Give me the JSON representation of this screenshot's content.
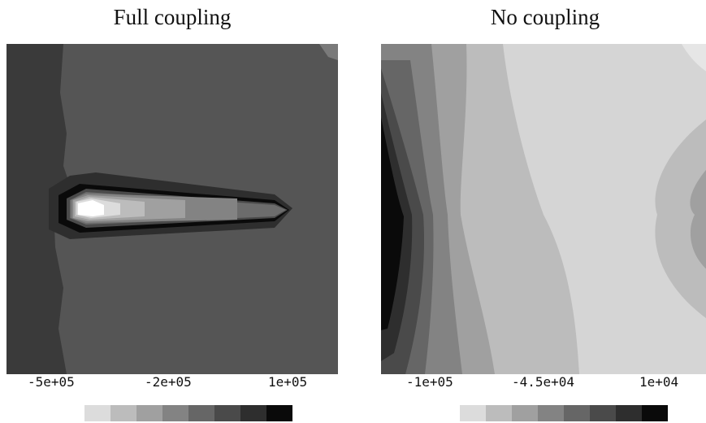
{
  "panels": [
    {
      "title": "Full coupling",
      "colorbar_ticks": [
        "-5e+05",
        "-2e+05",
        "1e+05"
      ]
    },
    {
      "title": "No coupling",
      "colorbar_ticks": [
        "-1e+05",
        "-4.5e+04",
        "1e+04"
      ]
    }
  ],
  "colorbar_levels": [
    "#dcdcdc",
    "#bcbcbc",
    "#a0a0a0",
    "#838383",
    "#666666",
    "#4a4a4a",
    "#2e2e2e",
    "#0a0a0a"
  ]
}
